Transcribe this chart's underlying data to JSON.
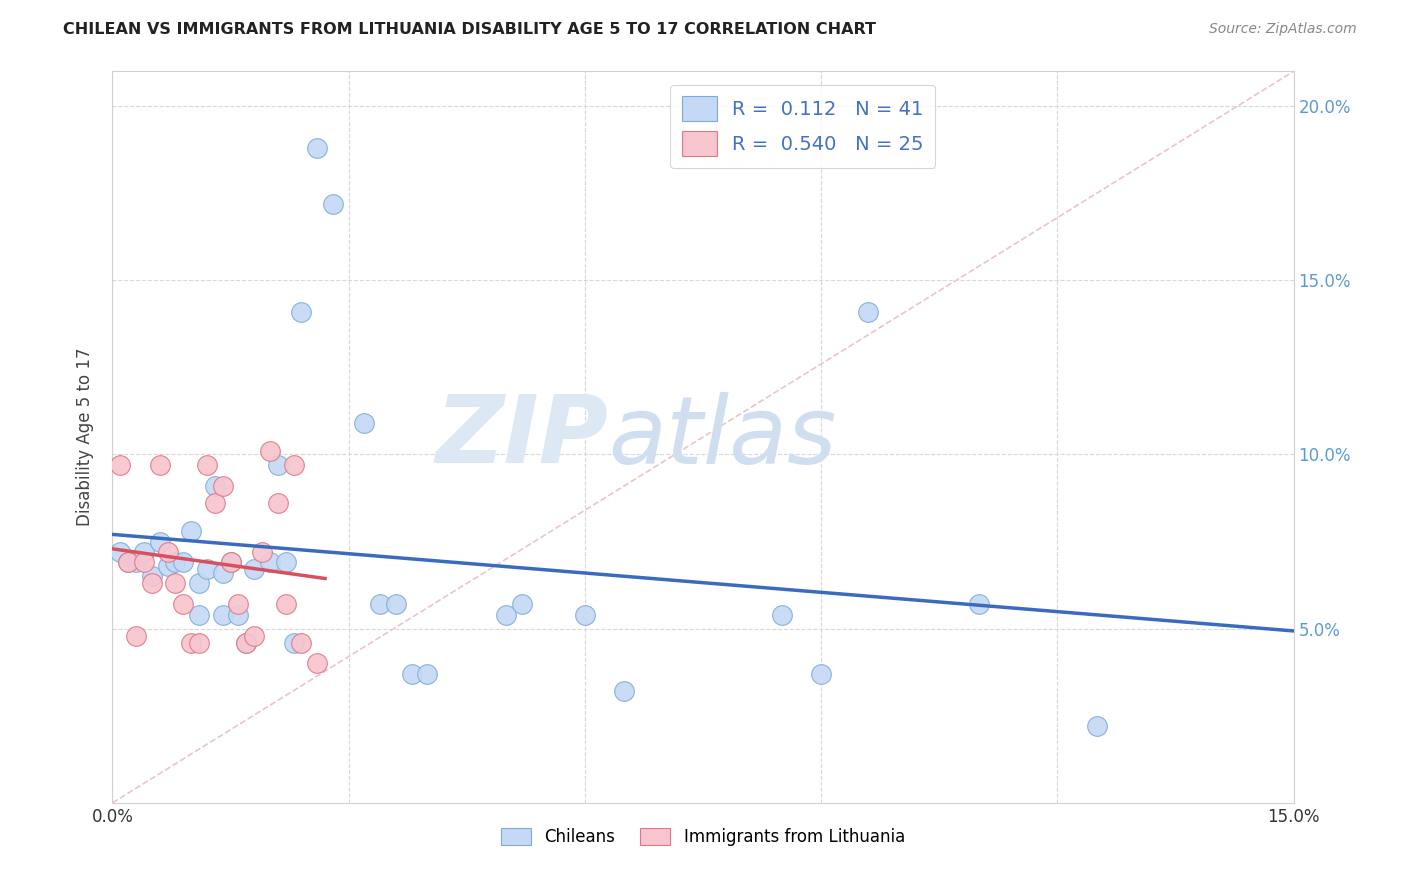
{
  "title": "CHILEAN VS IMMIGRANTS FROM LITHUANIA DISABILITY AGE 5 TO 17 CORRELATION CHART",
  "source": "Source: ZipAtlas.com",
  "ylabel": "Disability Age 5 to 17",
  "xlim": [
    0.0,
    0.15
  ],
  "ylim": [
    0.0,
    0.21
  ],
  "legend_r_values": [
    "0.112",
    "0.540"
  ],
  "legend_n_values": [
    "41",
    "25"
  ],
  "chilean_color": "#c5d8f5",
  "chilean_edge_color": "#7badd6",
  "lithuanian_color": "#f7c5ce",
  "lithuanian_edge_color": "#e07585",
  "regression_chilean_color": "#3a6bbf",
  "regression_lithuanian_color": "#d94f60",
  "diagonal_color": "#cccccc",
  "background_color": "#ffffff",
  "watermark_zip": "ZIP",
  "watermark_atlas": "atlas",
  "chilean_points": [
    [
      0.001,
      0.072
    ],
    [
      0.002,
      0.069
    ],
    [
      0.003,
      0.069
    ],
    [
      0.004,
      0.072
    ],
    [
      0.005,
      0.065
    ],
    [
      0.006,
      0.075
    ],
    [
      0.007,
      0.068
    ],
    [
      0.008,
      0.069
    ],
    [
      0.009,
      0.069
    ],
    [
      0.01,
      0.078
    ],
    [
      0.011,
      0.063
    ],
    [
      0.011,
      0.054
    ],
    [
      0.012,
      0.067
    ],
    [
      0.013,
      0.091
    ],
    [
      0.014,
      0.066
    ],
    [
      0.014,
      0.054
    ],
    [
      0.015,
      0.069
    ],
    [
      0.016,
      0.054
    ],
    [
      0.017,
      0.046
    ],
    [
      0.018,
      0.067
    ],
    [
      0.02,
      0.069
    ],
    [
      0.021,
      0.097
    ],
    [
      0.022,
      0.069
    ],
    [
      0.023,
      0.046
    ],
    [
      0.024,
      0.141
    ],
    [
      0.026,
      0.188
    ],
    [
      0.028,
      0.172
    ],
    [
      0.032,
      0.109
    ],
    [
      0.034,
      0.057
    ],
    [
      0.036,
      0.057
    ],
    [
      0.038,
      0.037
    ],
    [
      0.04,
      0.037
    ],
    [
      0.05,
      0.054
    ],
    [
      0.052,
      0.057
    ],
    [
      0.06,
      0.054
    ],
    [
      0.065,
      0.032
    ],
    [
      0.085,
      0.054
    ],
    [
      0.09,
      0.037
    ],
    [
      0.096,
      0.141
    ],
    [
      0.11,
      0.057
    ],
    [
      0.125,
      0.022
    ]
  ],
  "lithuanian_points": [
    [
      0.001,
      0.097
    ],
    [
      0.002,
      0.069
    ],
    [
      0.003,
      0.048
    ],
    [
      0.004,
      0.069
    ],
    [
      0.005,
      0.063
    ],
    [
      0.006,
      0.097
    ],
    [
      0.007,
      0.072
    ],
    [
      0.008,
      0.063
    ],
    [
      0.009,
      0.057
    ],
    [
      0.01,
      0.046
    ],
    [
      0.011,
      0.046
    ],
    [
      0.012,
      0.097
    ],
    [
      0.013,
      0.086
    ],
    [
      0.014,
      0.091
    ],
    [
      0.015,
      0.069
    ],
    [
      0.016,
      0.057
    ],
    [
      0.017,
      0.046
    ],
    [
      0.018,
      0.048
    ],
    [
      0.019,
      0.072
    ],
    [
      0.02,
      0.101
    ],
    [
      0.021,
      0.086
    ],
    [
      0.022,
      0.057
    ],
    [
      0.023,
      0.097
    ],
    [
      0.024,
      0.046
    ],
    [
      0.026,
      0.04
    ]
  ],
  "marker_size": 200
}
